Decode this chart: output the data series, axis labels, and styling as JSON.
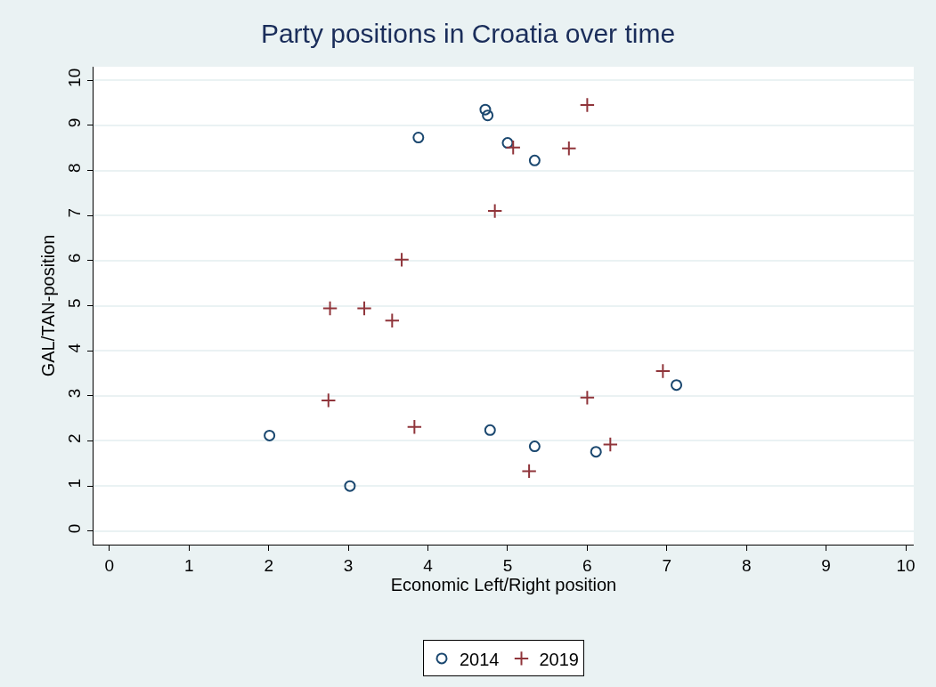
{
  "chart_data": {
    "type": "scatter",
    "title": "Party positions in Croatia over time",
    "xlabel": "Economic Left/Right position",
    "ylabel": "GAL/TAN-position",
    "xlim": [
      -0.2,
      10.1
    ],
    "ylim": [
      -0.3,
      10.3
    ],
    "xticks": [
      0,
      1,
      2,
      3,
      4,
      5,
      6,
      7,
      8,
      9,
      10
    ],
    "yticks": [
      0,
      1,
      2,
      3,
      4,
      5,
      6,
      7,
      8,
      9,
      10
    ],
    "grid": "y",
    "legend": "bottom",
    "series": [
      {
        "name": "2014",
        "color": "#1a476f",
        "marker": "circle",
        "x": [
          4.72,
          4.75,
          3.88,
          5.0,
          5.34,
          7.12,
          2.01,
          4.78,
          5.34,
          6.11,
          3.02
        ],
        "values": [
          9.35,
          9.22,
          8.73,
          8.61,
          8.22,
          3.24,
          2.12,
          2.24,
          1.88,
          1.76,
          1.0
        ]
      },
      {
        "name": "2019",
        "color": "#90353b",
        "marker": "cross",
        "x": [
          6.0,
          5.07,
          5.77,
          4.84,
          3.67,
          2.77,
          3.2,
          3.55,
          6.95,
          6.0,
          2.75,
          3.83,
          6.29,
          5.27
        ],
        "values": [
          9.45,
          8.51,
          8.49,
          7.1,
          6.02,
          4.94,
          4.94,
          4.67,
          3.55,
          2.96,
          2.9,
          2.31,
          1.92,
          1.33
        ]
      }
    ]
  }
}
